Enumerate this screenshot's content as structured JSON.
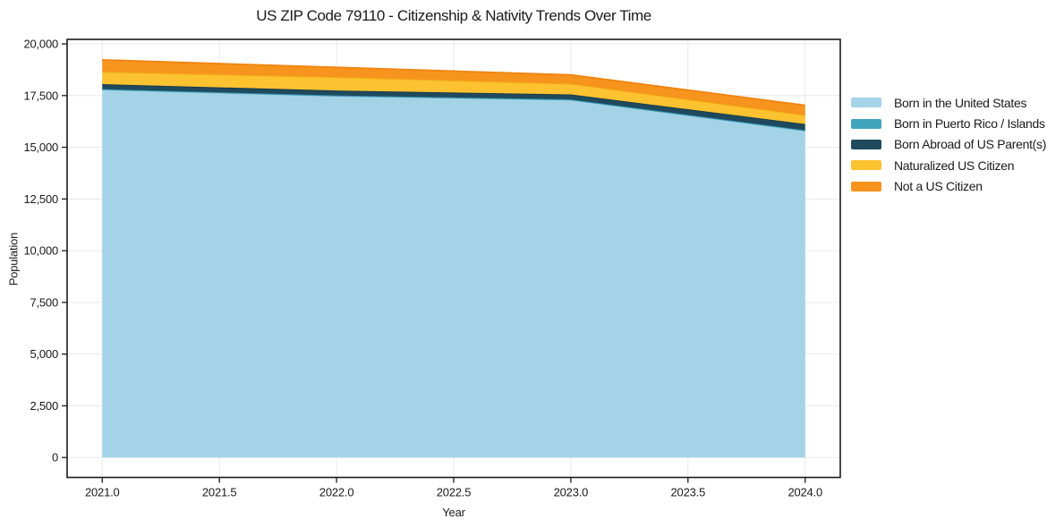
{
  "chart_data": {
    "type": "area",
    "stacked": true,
    "title": "US ZIP Code 79110 - Citizenship & Nativity Trends Over Time",
    "xlabel": "Year",
    "ylabel": "Population",
    "x": [
      2021,
      2022,
      2023,
      2024
    ],
    "series": [
      {
        "name": "Born in the United States",
        "values": [
          17790,
          17480,
          17290,
          15800
        ],
        "fill": "#a4d3e8",
        "edge": "#7fbcd9"
      },
      {
        "name": "Born in Puerto Rico / Islands",
        "values": [
          25,
          25,
          25,
          25
        ],
        "fill": "#41a4bd",
        "edge": "#2f90aa"
      },
      {
        "name": "Born Abroad of US Parent(s)",
        "values": [
          240,
          240,
          240,
          300
        ],
        "fill": "#1f4a5e",
        "edge": "#16394a"
      },
      {
        "name": "Naturalized US Citizen",
        "values": [
          595,
          645,
          515,
          430
        ],
        "fill": "#fcc22f",
        "edge": "#efaf13"
      },
      {
        "name": "Not a US Citizen",
        "values": [
          575,
          475,
          430,
          475
        ],
        "fill": "#f7941e",
        "edge": "#ef8410"
      }
    ],
    "totals_by_year": [
      19225,
      18865,
      18500,
      17030
    ],
    "x_ticks": [
      2021.0,
      2021.5,
      2022.0,
      2022.5,
      2023.0,
      2023.5,
      2024.0
    ],
    "x_tick_labels": [
      "2021.0",
      "2021.5",
      "2022.0",
      "2022.5",
      "2023.0",
      "2023.5",
      "2024.0"
    ],
    "y_ticks": [
      0,
      2500,
      5000,
      7500,
      10000,
      12500,
      15000,
      17500,
      20000
    ],
    "y_tick_labels": [
      "0",
      "2,500",
      "5,000",
      "7,500",
      "10,000",
      "12,500",
      "15,000",
      "17,500",
      "20,000"
    ],
    "xlim": [
      2020.85,
      2024.15
    ],
    "ylim": [
      -963,
      20217
    ],
    "grid": true,
    "legend_position": "right-outside",
    "colors": {
      "grid": "#e9e9e9",
      "spine": "#1c1c1c",
      "tick": "#1c1c1c",
      "text": "#1a1a1a",
      "background": "#ffffff"
    }
  }
}
